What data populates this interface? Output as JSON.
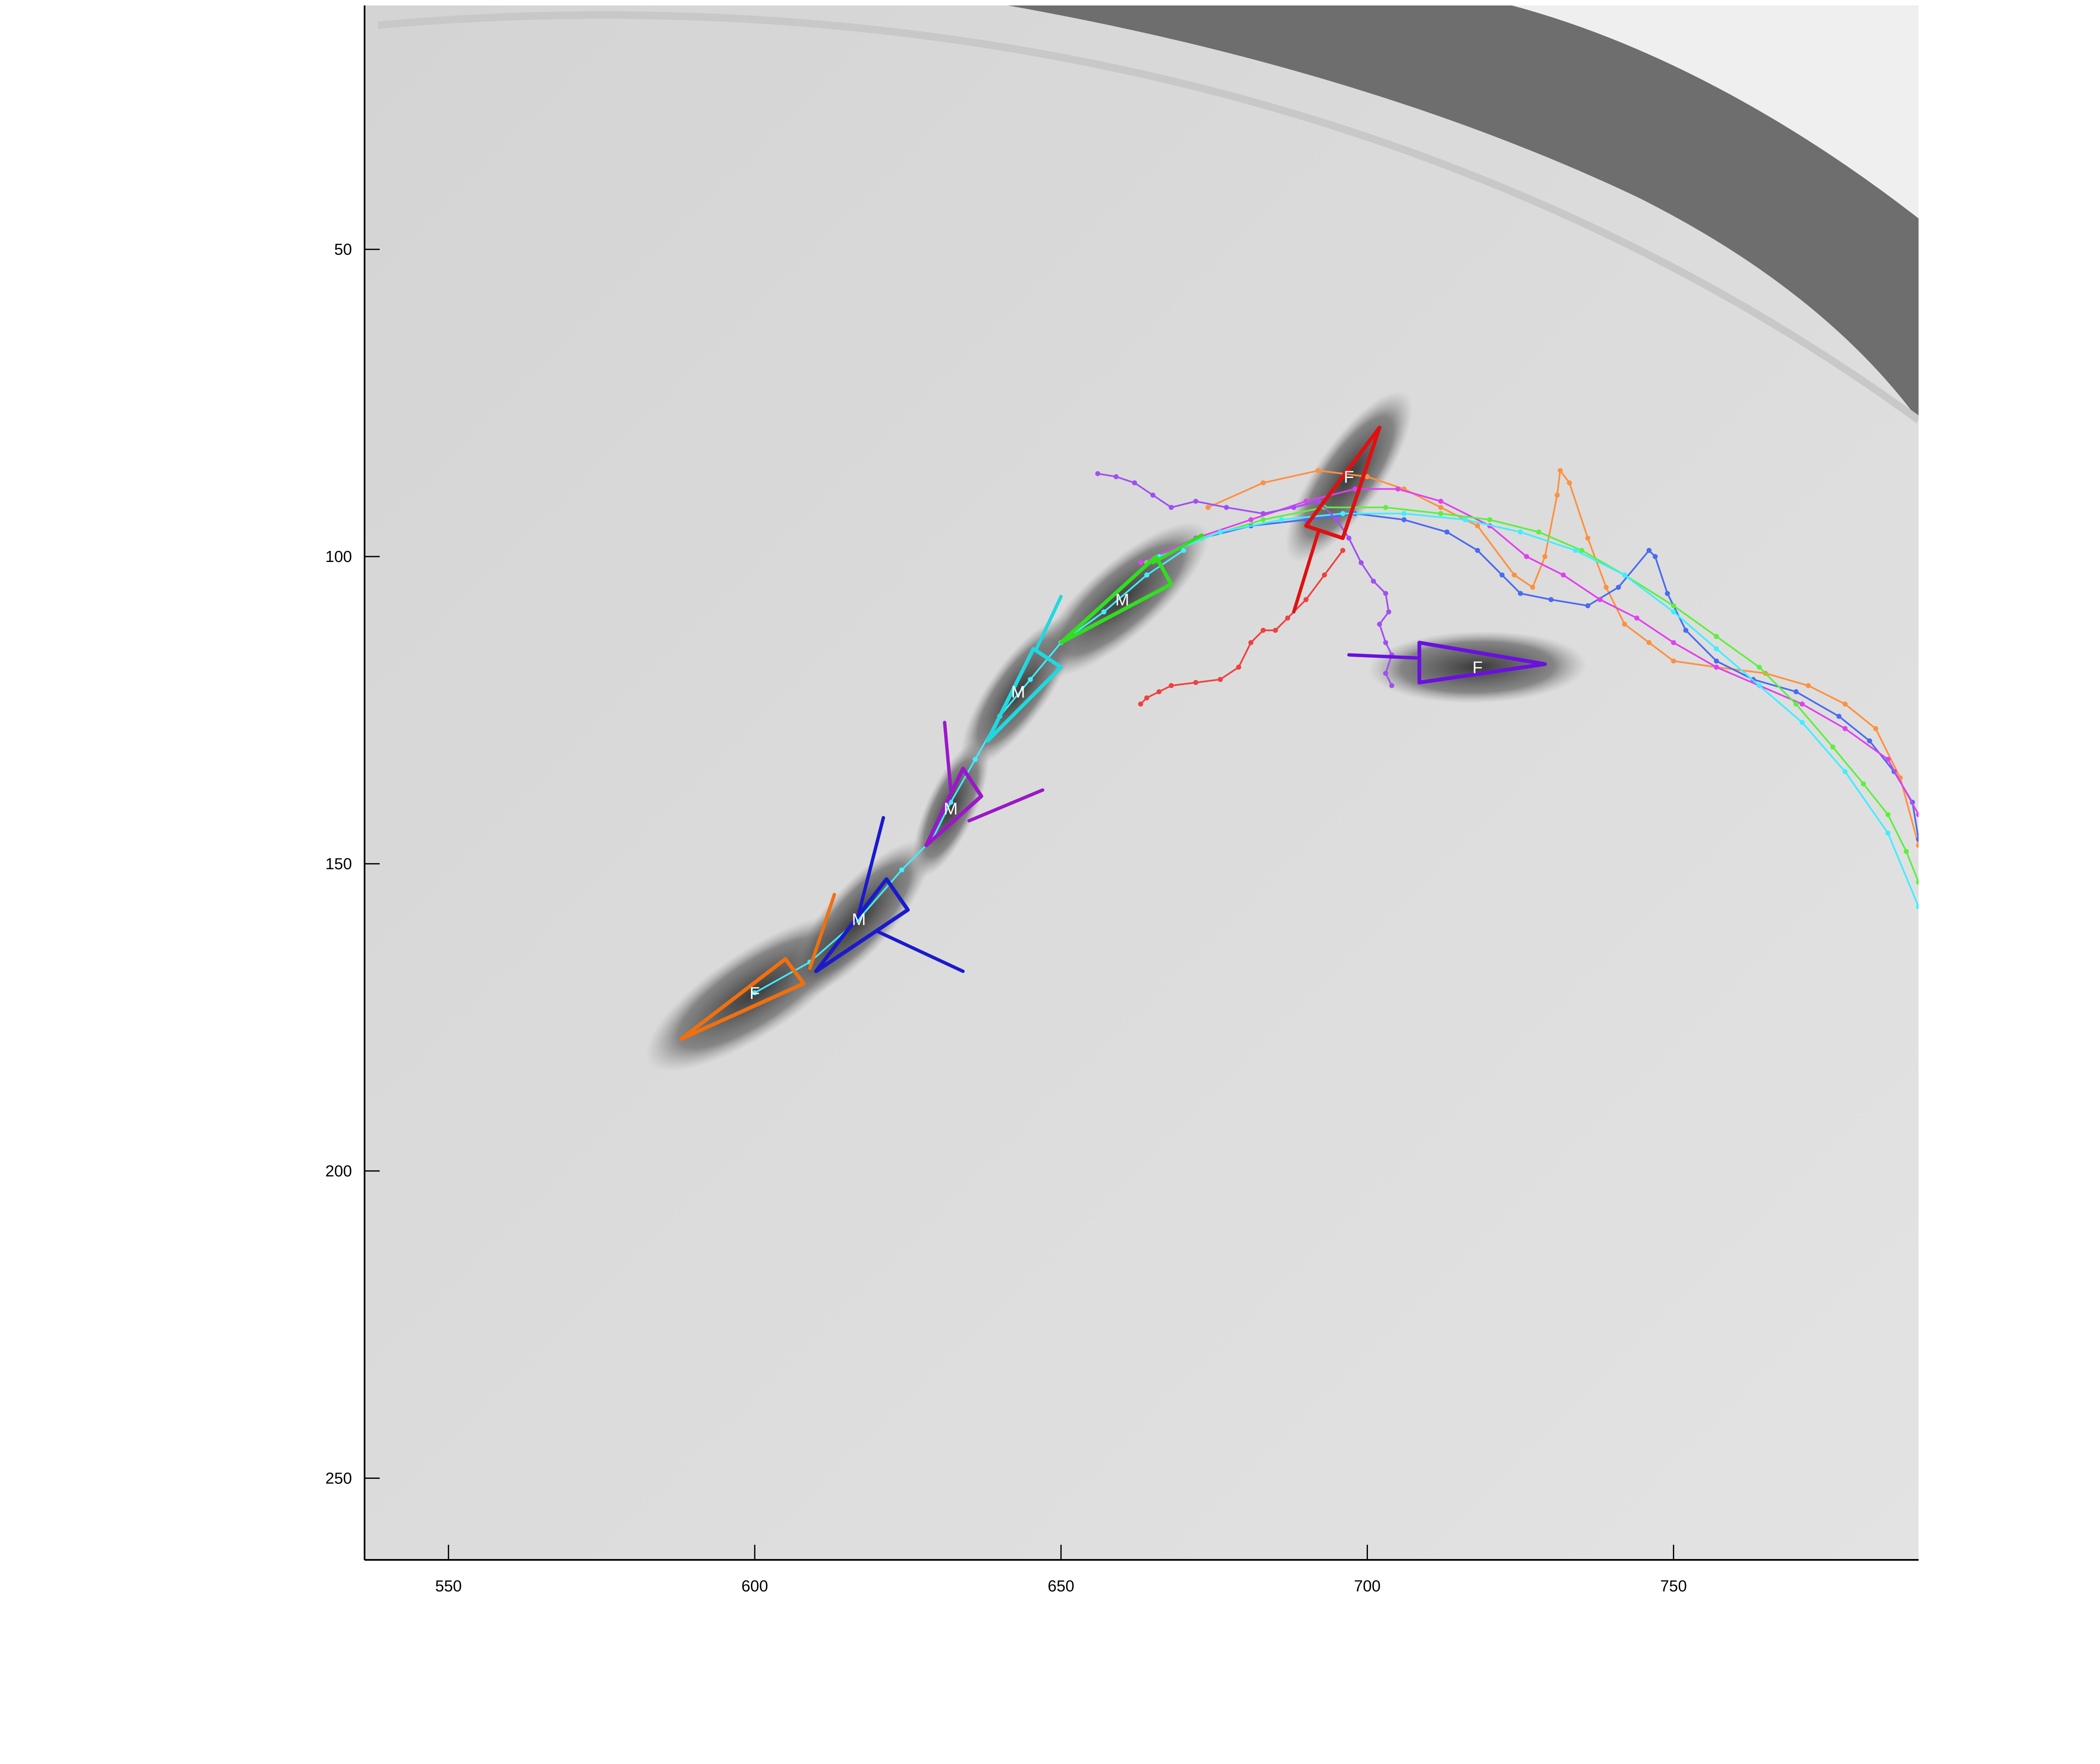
{
  "chart_data": {
    "type": "scatter",
    "title": "",
    "xlabel": "",
    "ylabel": "",
    "xlim": [
      536.3,
      790
    ],
    "ylim": [
      263.3,
      10.3
    ],
    "y_reversed": true,
    "grid": false,
    "x_ticks": [
      550,
      600,
      650,
      700,
      750
    ],
    "y_ticks": [
      50,
      100,
      150,
      200,
      250
    ],
    "x_tick_labels": [
      "550",
      "600",
      "650",
      "700",
      "750"
    ],
    "y_tick_labels": [
      "50",
      "100",
      "150",
      "200",
      "250"
    ],
    "colors": {
      "orange": "#f07010",
      "blue": "#1a1acc",
      "purple": "#9a18c8",
      "cyan": "#20d8e0",
      "green": "#33dd22",
      "red": "#e01010",
      "violet": "#6a10e0",
      "orange_light": "#ff9040",
      "blue_light": "#4a6af0",
      "magenta": "#e040f0",
      "cyan_light": "#40eeff",
      "green_light": "#5cf040",
      "red_light": "#f04040",
      "purple_light": "#a050f0"
    },
    "flies": [
      {
        "label": "F",
        "color_key": "orange",
        "center": [
          600,
          171
        ],
        "tip": [
          587,
          178.5
        ],
        "back": [
          607.5,
          165
        ],
        "wing_pts": [
          [
            588,
            178.5
          ],
          [
            608,
            169.5
          ],
          [
            605,
            165.5
          ]
        ],
        "wing_lines": [
          [
            [
              609,
              167
            ],
            [
              613,
              155
            ]
          ]
        ]
      },
      {
        "label": "M",
        "color_key": "blue",
        "center": [
          617,
          159
        ],
        "tip": [
          609,
          167.5
        ],
        "back": [
          622,
          153
        ],
        "wing_pts": [
          [
            610,
            167.5
          ],
          [
            625,
            157.5
          ],
          [
            621.5,
            152.5
          ]
        ],
        "wing_lines": [
          [
            [
              617,
              158
            ],
            [
              621,
              142.5
            ]
          ],
          [
            [
              620,
              161
            ],
            [
              634,
              167.5
            ]
          ]
        ]
      },
      {
        "label": "M",
        "color_key": "purple",
        "center": [
          632,
          141
        ],
        "tip": [
          628,
          147
        ],
        "back": [
          634,
          134
        ],
        "wing_pts": [
          [
            628,
            147
          ],
          [
            637,
            139
          ],
          [
            634,
            134.5
          ]
        ],
        "wing_lines": [
          [
            [
              632,
              138
            ],
            [
              631,
              127
            ]
          ],
          [
            [
              635,
              143
            ],
            [
              647,
              138
            ]
          ]
        ]
      },
      {
        "label": "M",
        "color_key": "cyan",
        "center": [
          643,
          122
        ],
        "tip": [
          638,
          130
        ],
        "back": [
          648,
          116
        ],
        "wing_pts": [
          [
            638,
            130
          ],
          [
            650,
            118
          ],
          [
            645.5,
            115
          ]
        ],
        "wing_lines": [
          [
            [
              646,
              115
            ],
            [
              650,
              106.5
            ]
          ]
        ]
      },
      {
        "label": "M",
        "color_key": "green",
        "center": [
          660,
          107
        ],
        "tip": [
          650,
          114
        ],
        "back": [
          666,
          100
        ],
        "wing_pts": [
          [
            650,
            114
          ],
          [
            668,
            104.5
          ],
          [
            665.5,
            100
          ]
        ],
        "wing_lines": [
          [
            [
              665,
              101
            ],
            [
              673,
              96.5
            ]
          ]
        ]
      },
      {
        "label": "F",
        "color_key": "red",
        "center": [
          697,
          87
        ],
        "tip": [
          702,
          79
        ],
        "back": [
          691,
          95
        ],
        "wing_pts": [
          [
            702,
            79
          ],
          [
            696,
            97
          ],
          [
            690,
            95
          ]
        ],
        "wing_lines": [
          [
            [
              692,
              96
            ],
            [
              688,
              109
            ]
          ]
        ]
      },
      {
        "label": "F",
        "color_key": "violet",
        "center": [
          718,
          118
        ],
        "tip": [
          729,
          117.5
        ],
        "back": [
          708,
          118
        ],
        "wing_pts": [
          [
            729,
            117.5
          ],
          [
            708.5,
            114
          ],
          [
            708.5,
            120.5
          ]
        ],
        "wing_lines": [
          [
            [
              697,
              116
            ],
            [
              708,
              116.5
            ]
          ]
        ]
      }
    ],
    "series": [
      {
        "color_key": "orange_light",
        "points": [
          [
            674,
            92
          ],
          [
            683,
            88
          ],
          [
            692,
            86
          ],
          [
            700,
            87
          ],
          [
            706,
            89
          ],
          [
            712,
            92
          ],
          [
            718,
            95
          ],
          [
            724,
            103
          ],
          [
            727,
            105
          ],
          [
            729,
            100
          ],
          [
            731,
            90
          ],
          [
            731.5,
            86
          ],
          [
            733,
            88
          ],
          [
            736,
            97
          ],
          [
            739,
            105
          ],
          [
            742,
            111
          ],
          [
            746,
            114
          ],
          [
            750,
            117
          ],
          [
            757,
            118
          ],
          [
            765,
            119
          ],
          [
            772,
            121
          ],
          [
            778,
            124
          ],
          [
            783,
            128
          ],
          [
            787,
            136
          ],
          [
            790,
            147
          ]
        ]
      },
      {
        "color_key": "blue_light",
        "points": [
          [
            673,
            97
          ],
          [
            681,
            95
          ],
          [
            690,
            94
          ],
          [
            698,
            93
          ],
          [
            706,
            94
          ],
          [
            713,
            96
          ],
          [
            718,
            99
          ],
          [
            722,
            103
          ],
          [
            725,
            106
          ],
          [
            730,
            107
          ],
          [
            736,
            108
          ],
          [
            741,
            105
          ],
          [
            746,
            99
          ],
          [
            747,
            100
          ],
          [
            749,
            106
          ],
          [
            752,
            112
          ],
          [
            757,
            117
          ],
          [
            763,
            120
          ],
          [
            770,
            122
          ],
          [
            777,
            126
          ],
          [
            782,
            130
          ],
          [
            786,
            135
          ],
          [
            789,
            140
          ],
          [
            790,
            146
          ]
        ]
      },
      {
        "color_key": "magenta",
        "points": [
          [
            663,
            101
          ],
          [
            672,
            97
          ],
          [
            681,
            94
          ],
          [
            690,
            91
          ],
          [
            698,
            89
          ],
          [
            705,
            89
          ],
          [
            712,
            91
          ],
          [
            720,
            95
          ],
          [
            726,
            100
          ],
          [
            732,
            103
          ],
          [
            738,
            107
          ],
          [
            744,
            110
          ],
          [
            750,
            114
          ],
          [
            757,
            118
          ],
          [
            764,
            121
          ],
          [
            771,
            124
          ],
          [
            778,
            128
          ],
          [
            785,
            133
          ],
          [
            790,
            142
          ]
        ]
      },
      {
        "color_key": "green_light",
        "points": [
          [
            664,
            101
          ],
          [
            673,
            97
          ],
          [
            683,
            94
          ],
          [
            693,
            92
          ],
          [
            703,
            92
          ],
          [
            712,
            93
          ],
          [
            720,
            94
          ],
          [
            728,
            96
          ],
          [
            735,
            99
          ],
          [
            742,
            103
          ],
          [
            750,
            108
          ],
          [
            757,
            113
          ],
          [
            764,
            118
          ],
          [
            770,
            124
          ],
          [
            776,
            131
          ],
          [
            781,
            137
          ],
          [
            785,
            142
          ],
          [
            788,
            148
          ],
          [
            790,
            153
          ]
        ]
      },
      {
        "color_key": "cyan_light",
        "points": [
          [
            666,
            100
          ],
          [
            676,
            96
          ],
          [
            686,
            94
          ],
          [
            696,
            93
          ],
          [
            706,
            93
          ],
          [
            716,
            94
          ],
          [
            725,
            96
          ],
          [
            734,
            99
          ],
          [
            742,
            103
          ],
          [
            750,
            109
          ],
          [
            757,
            115
          ],
          [
            764,
            121
          ],
          [
            771,
            127
          ],
          [
            778,
            135
          ],
          [
            785,
            145
          ],
          [
            790,
            157
          ]
        ]
      },
      {
        "color_key": "purple_light",
        "points": [
          [
            656,
            86.5
          ],
          [
            659,
            87
          ],
          [
            662,
            88
          ],
          [
            665,
            90
          ],
          [
            668,
            92
          ],
          [
            672,
            91
          ],
          [
            677,
            92
          ],
          [
            683,
            93
          ],
          [
            688,
            92
          ],
          [
            692,
            91
          ],
          [
            695,
            94
          ],
          [
            697,
            97
          ],
          [
            699,
            101
          ],
          [
            701,
            104
          ],
          [
            703,
            106
          ],
          [
            703.5,
            109
          ],
          [
            702,
            111
          ],
          [
            703,
            114
          ],
          [
            704,
            116
          ],
          [
            703,
            119
          ],
          [
            704,
            121
          ]
        ]
      },
      {
        "color_key": "red_light",
        "points": [
          [
            663,
            124
          ],
          [
            664,
            123
          ],
          [
            666,
            122
          ],
          [
            668,
            121
          ],
          [
            672,
            120.5
          ],
          [
            676,
            120
          ],
          [
            679,
            118
          ],
          [
            681,
            114
          ],
          [
            683,
            112
          ],
          [
            685,
            112
          ],
          [
            687,
            110
          ],
          [
            690,
            107
          ],
          [
            693,
            103
          ],
          [
            696,
            99
          ]
        ]
      },
      {
        "color_key": "cyan_light",
        "points": [
          [
            600,
            171
          ],
          [
            609,
            166
          ],
          [
            617,
            159
          ],
          [
            624,
            151
          ],
          [
            629,
            146
          ],
          [
            632,
            140
          ],
          [
            636,
            133
          ],
          [
            640,
            126
          ],
          [
            645,
            120
          ],
          [
            650,
            114
          ],
          [
            657,
            109
          ],
          [
            664,
            103
          ],
          [
            670,
            99
          ]
        ]
      }
    ]
  }
}
